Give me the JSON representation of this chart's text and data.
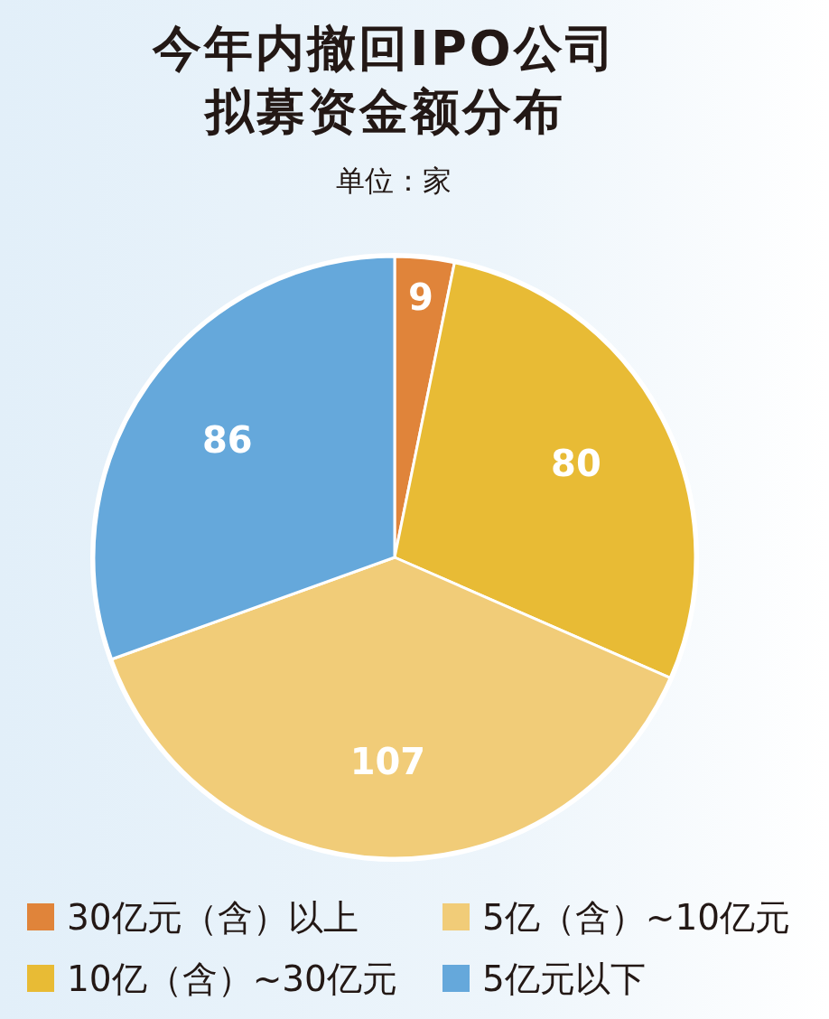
{
  "chart_data": {
    "type": "pie",
    "title": "今年内撤回IPO公司拟募资金额分布",
    "subtitle": "单位：家",
    "categories": [
      "30亿元（含）以上",
      "10亿（含）~30亿元",
      "5亿（含）~10亿元",
      "5亿元以下"
    ],
    "values": [
      9,
      80,
      107,
      86
    ],
    "colors": [
      "#e0843a",
      "#e8bb35",
      "#f1cc78",
      "#65a8db"
    ],
    "data_labels": true,
    "legend": "bottom"
  }
}
